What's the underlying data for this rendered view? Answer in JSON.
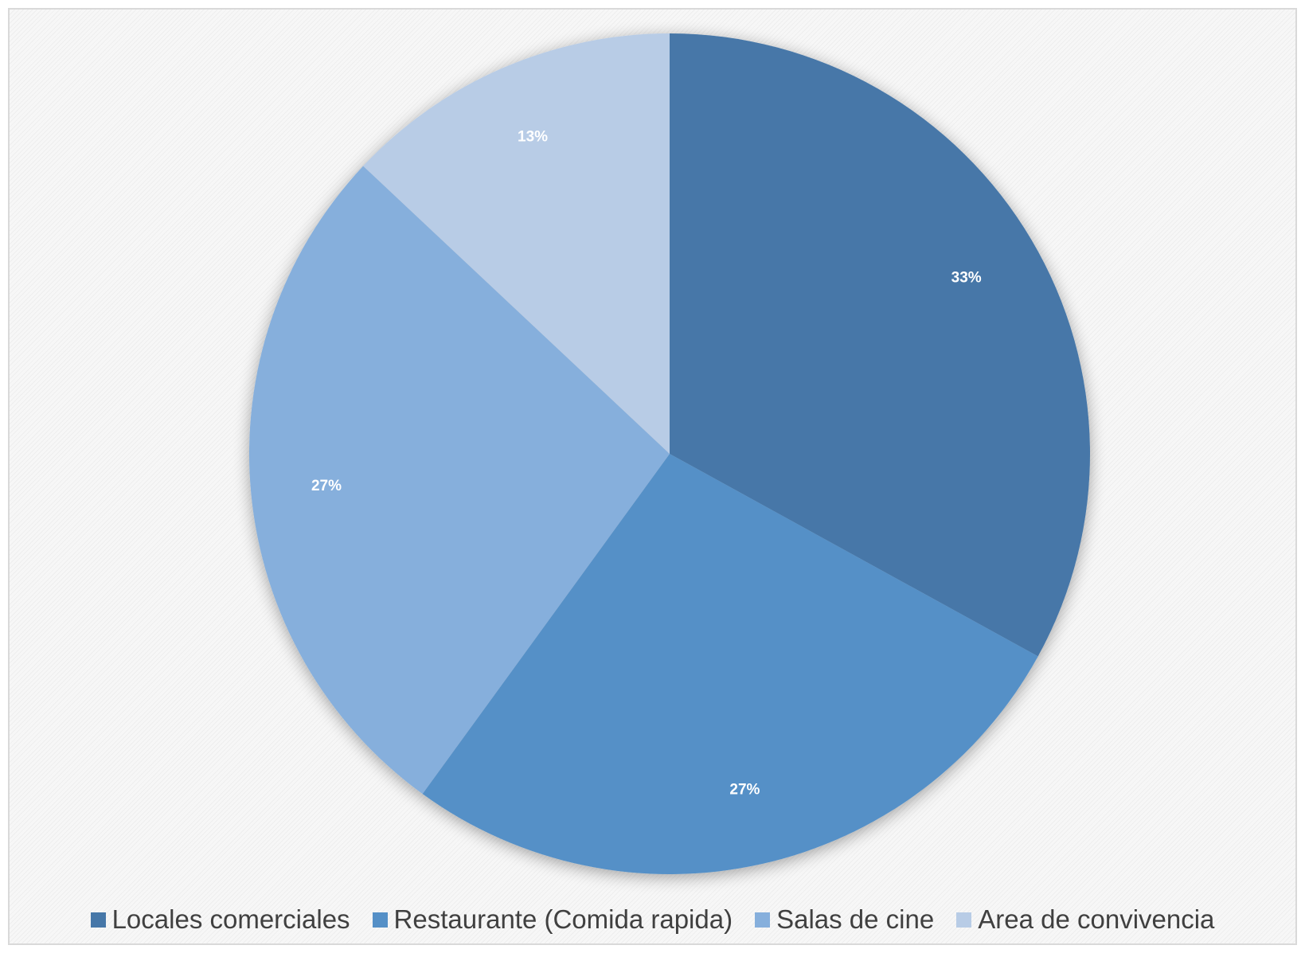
{
  "chart_data": {
    "type": "pie",
    "categories": [
      "Locales comerciales",
      "Restaurante (Comida rapida)",
      "Salas de cine",
      "Area de convivencia"
    ],
    "values": [
      33,
      27,
      27,
      13
    ],
    "labels": [
      "33%",
      "27%",
      "27%",
      "13%"
    ],
    "colors": [
      "#4677a8",
      "#5590c7",
      "#86afdc",
      "#b8cce6"
    ],
    "start_angle_deg": 0,
    "direction": "clockwise",
    "legend_position": "bottom",
    "title": ""
  }
}
